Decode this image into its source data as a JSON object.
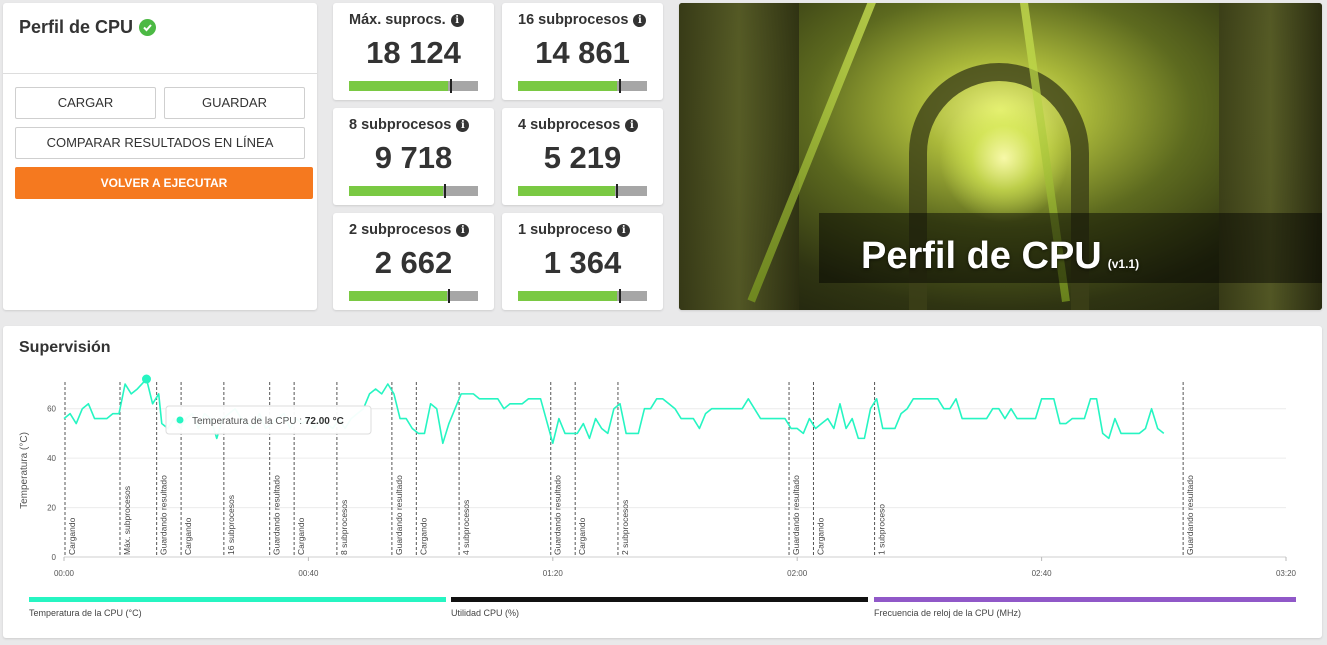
{
  "left_panel": {
    "title": "Perfil de CPU",
    "buttons": {
      "load": "CARGAR",
      "save": "GUARDAR",
      "compare": "COMPARAR RESULTADOS EN LÍNEA",
      "rerun": "VOLVER A EJECUTAR"
    }
  },
  "tiles": [
    {
      "label": "Máx. suprocs.",
      "value": "18 124",
      "fill": 0.77,
      "marker": 0.78
    },
    {
      "label": "16 subprocesos",
      "value": "14 861",
      "fill": 0.77,
      "marker": 0.78
    },
    {
      "label": "8 subprocesos",
      "value": "9 718",
      "fill": 0.73,
      "marker": 0.74
    },
    {
      "label": "4 subprocesos",
      "value": "5 219",
      "fill": 0.75,
      "marker": 0.76
    },
    {
      "label": "2 subprocesos",
      "value": "2 662",
      "fill": 0.76,
      "marker": 0.77
    },
    {
      "label": "1 subproceso",
      "value": "1 364",
      "fill": 0.77,
      "marker": 0.78
    }
  ],
  "hero": {
    "title": "Perfil de CPU",
    "version": "(v1.1)"
  },
  "monitor": {
    "title": "Supervisión",
    "tooltip": {
      "label": "Temperatura de la CPU",
      "value": "72.00 °C"
    },
    "legend": [
      {
        "label": "Temperatura de la CPU (°C)",
        "color": "#26f5c2"
      },
      {
        "label": "Utilidad CPU (%)",
        "color": "#111111"
      },
      {
        "label": "Frecuencia de reloj de la CPU (MHz)",
        "color": "#9058c8"
      }
    ]
  },
  "chart_data": {
    "type": "line",
    "ylabel": "Temperatura (°C)",
    "xlim": [
      0,
      200
    ],
    "ylim": [
      0,
      70
    ],
    "x_ticks": [
      {
        "v": 0,
        "label": "00:00"
      },
      {
        "v": 40,
        "label": "00:40"
      },
      {
        "v": 80,
        "label": "01:20"
      },
      {
        "v": 120,
        "label": "02:00"
      },
      {
        "v": 160,
        "label": "02:40"
      },
      {
        "v": 200,
        "label": "03:20"
      }
    ],
    "y_ticks": [
      0,
      20,
      40,
      60
    ],
    "markers": [
      {
        "x": 0,
        "label": "Cargando"
      },
      {
        "x": 9,
        "label": "Máx. subprocesos"
      },
      {
        "x": 15,
        "label": "Guardando resultado"
      },
      {
        "x": 19,
        "label": "Cargando"
      },
      {
        "x": 26,
        "label": "16 subprocesos"
      },
      {
        "x": 33.5,
        "label": "Guardando resultado"
      },
      {
        "x": 37.5,
        "label": "Cargando"
      },
      {
        "x": 44.5,
        "label": "8 subprocesos"
      },
      {
        "x": 53.5,
        "label": "Guardando resultado"
      },
      {
        "x": 57.5,
        "label": "Cargando"
      },
      {
        "x": 64.5,
        "label": "4 subprocesos"
      },
      {
        "x": 79.5,
        "label": "Guardando resultado"
      },
      {
        "x": 83.5,
        "label": "Cargando"
      },
      {
        "x": 90.5,
        "label": "2 subprocesos"
      },
      {
        "x": 118.5,
        "label": "Guardando resultado"
      },
      {
        "x": 122.5,
        "label": "Cargando"
      },
      {
        "x": 132.5,
        "label": "1 subproceso"
      },
      {
        "x": 183,
        "label": "Guardando resultado"
      }
    ],
    "series": [
      {
        "name": "Temperatura de la CPU (°C)",
        "highlight": {
          "x": 13.5,
          "y": 72
        },
        "points": [
          [
            0,
            56
          ],
          [
            1,
            58
          ],
          [
            2,
            54
          ],
          [
            3,
            60
          ],
          [
            4,
            62
          ],
          [
            5,
            56
          ],
          [
            6,
            56
          ],
          [
            7,
            56
          ],
          [
            8,
            58
          ],
          [
            9,
            58
          ],
          [
            10,
            70
          ],
          [
            11,
            66
          ],
          [
            12,
            68
          ],
          [
            13.5,
            72
          ],
          [
            14.5,
            62
          ],
          [
            15.5,
            66
          ],
          [
            16,
            54
          ],
          [
            17,
            52
          ],
          [
            18,
            56
          ],
          [
            19,
            52
          ],
          [
            20,
            56
          ],
          [
            21,
            58
          ],
          [
            22,
            52
          ],
          [
            23,
            58
          ],
          [
            24,
            56
          ],
          [
            25,
            48
          ],
          [
            26,
            56
          ],
          [
            27,
            58
          ],
          [
            28,
            60
          ],
          [
            29,
            56
          ],
          [
            30,
            54
          ],
          [
            31,
            52
          ],
          [
            32,
            58
          ],
          [
            33,
            52
          ],
          [
            34,
            54
          ],
          [
            35,
            56
          ],
          [
            36,
            58
          ],
          [
            37,
            52
          ],
          [
            38,
            56
          ],
          [
            39,
            54
          ],
          [
            40,
            56
          ],
          [
            41,
            52
          ],
          [
            42,
            56
          ],
          [
            43,
            54
          ],
          [
            44,
            52
          ],
          [
            45,
            56
          ],
          [
            46,
            52
          ],
          [
            47,
            56
          ],
          [
            48,
            58
          ],
          [
            49,
            60
          ],
          [
            50,
            66
          ],
          [
            51,
            68
          ],
          [
            52,
            66
          ],
          [
            53,
            70
          ],
          [
            54,
            66
          ],
          [
            55,
            56
          ],
          [
            56,
            56
          ],
          [
            57,
            52
          ],
          [
            58,
            50
          ],
          [
            59,
            50
          ],
          [
            60,
            62
          ],
          [
            61,
            60
          ],
          [
            62,
            46
          ],
          [
            63,
            54
          ],
          [
            64,
            60
          ],
          [
            65,
            66
          ],
          [
            66,
            66
          ],
          [
            67,
            66
          ],
          [
            68,
            64
          ],
          [
            69,
            64
          ],
          [
            70,
            64
          ],
          [
            71,
            64
          ],
          [
            72,
            60
          ],
          [
            73,
            62
          ],
          [
            74,
            62
          ],
          [
            75,
            62
          ],
          [
            76,
            64
          ],
          [
            77,
            64
          ],
          [
            78,
            64
          ],
          [
            80,
            46
          ],
          [
            81,
            56
          ],
          [
            82,
            50
          ],
          [
            83,
            50
          ],
          [
            84,
            50
          ],
          [
            85,
            54
          ],
          [
            86,
            48
          ],
          [
            87,
            56
          ],
          [
            88,
            52
          ],
          [
            89,
            50
          ],
          [
            90,
            60
          ],
          [
            91,
            62
          ],
          [
            92,
            50
          ],
          [
            93,
            50
          ],
          [
            94,
            50
          ],
          [
            95,
            60
          ],
          [
            96,
            60
          ],
          [
            97,
            64
          ],
          [
            98,
            64
          ],
          [
            99,
            62
          ],
          [
            100,
            60
          ],
          [
            101,
            56
          ],
          [
            102,
            56
          ],
          [
            103,
            56
          ],
          [
            104,
            52
          ],
          [
            105,
            58
          ],
          [
            106,
            60
          ],
          [
            107,
            60
          ],
          [
            108,
            60
          ],
          [
            109,
            60
          ],
          [
            110,
            60
          ],
          [
            111,
            60
          ],
          [
            112,
            64
          ],
          [
            113,
            60
          ],
          [
            114,
            56
          ],
          [
            115,
            56
          ],
          [
            116,
            56
          ],
          [
            117,
            56
          ],
          [
            118,
            56
          ],
          [
            119,
            52
          ],
          [
            120,
            52
          ],
          [
            121,
            50
          ],
          [
            122,
            56
          ],
          [
            123,
            52
          ],
          [
            124,
            54
          ],
          [
            125,
            56
          ],
          [
            126,
            52
          ],
          [
            127,
            62
          ],
          [
            128,
            52
          ],
          [
            129,
            56
          ],
          [
            130,
            48
          ],
          [
            131,
            48
          ],
          [
            132,
            60
          ],
          [
            133,
            64
          ],
          [
            134,
            52
          ],
          [
            135,
            52
          ],
          [
            136,
            52
          ],
          [
            137,
            58
          ],
          [
            138,
            60
          ],
          [
            139,
            64
          ],
          [
            140,
            64
          ],
          [
            141,
            64
          ],
          [
            142,
            64
          ],
          [
            143,
            64
          ],
          [
            144,
            60
          ],
          [
            145,
            60
          ],
          [
            146,
            64
          ],
          [
            147,
            56
          ],
          [
            148,
            56
          ],
          [
            149,
            56
          ],
          [
            150,
            56
          ],
          [
            151,
            56
          ],
          [
            152,
            60
          ],
          [
            153,
            60
          ],
          [
            154,
            56
          ],
          [
            155,
            60
          ],
          [
            156,
            56
          ],
          [
            157,
            56
          ],
          [
            158,
            56
          ],
          [
            159,
            56
          ],
          [
            160,
            64
          ],
          [
            161,
            64
          ],
          [
            162,
            64
          ],
          [
            163,
            54
          ],
          [
            164,
            54
          ],
          [
            165,
            56
          ],
          [
            166,
            56
          ],
          [
            167,
            56
          ],
          [
            168,
            64
          ],
          [
            169,
            64
          ],
          [
            170,
            50
          ],
          [
            171,
            48
          ],
          [
            172,
            56
          ],
          [
            173,
            50
          ],
          [
            174,
            50
          ],
          [
            175,
            50
          ],
          [
            176,
            50
          ],
          [
            177,
            52
          ],
          [
            178,
            60
          ],
          [
            179,
            52
          ],
          [
            180,
            50
          ]
        ]
      }
    ]
  }
}
